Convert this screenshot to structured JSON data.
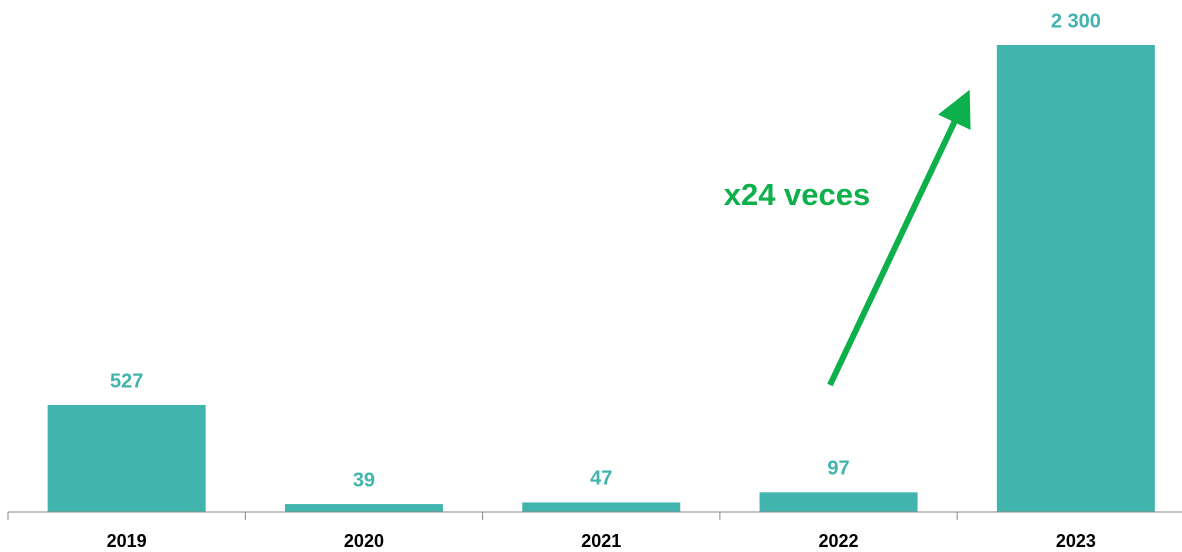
{
  "chart_data": {
    "type": "bar",
    "categories": [
      "2019",
      "2020",
      "2021",
      "2022",
      "2023"
    ],
    "values": [
      527,
      39,
      47,
      97,
      2300
    ],
    "value_labels": [
      "527",
      "39",
      "47",
      "97",
      "2 300"
    ],
    "color": "#41b4ae",
    "ylim": [
      0,
      2300
    ],
    "annotation": "x24 veces"
  }
}
